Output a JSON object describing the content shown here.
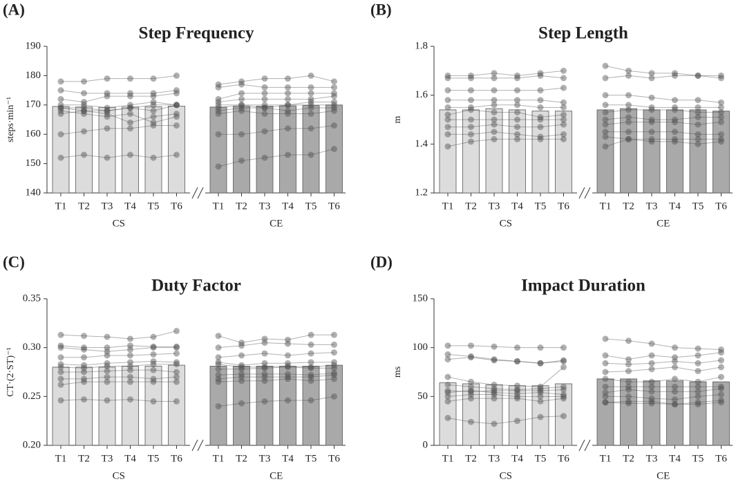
{
  "chart_data": [
    {
      "type": "bar",
      "panel": "(A)",
      "title": "Step Frequency",
      "ylabel": "steps·min⁻¹",
      "categories": [
        "T1",
        "T2",
        "T3",
        "T4",
        "T5",
        "T6"
      ],
      "ylim": [
        140,
        190
      ],
      "yticks": [
        140,
        150,
        160,
        170,
        180,
        190
      ],
      "marker_color": "#505050",
      "series": [
        {
          "name": "CS",
          "color": "#dcdcdc",
          "values": [
            169.5,
            169.3,
            169.2,
            169.3,
            169.4,
            169.6
          ],
          "subjects": [
            [
              178,
              178,
              179,
              179,
              179,
              180
            ],
            [
              175,
              174,
              174,
              174,
              174,
              175
            ],
            [
              172,
              171,
              173,
              173,
              173,
              174
            ],
            [
              170,
              170,
              169,
              170,
              171,
              170
            ],
            [
              169,
              169,
              168,
              169,
              170,
              170
            ],
            [
              169,
              168,
              168,
              169,
              168,
              170
            ],
            [
              167,
              168,
              167,
              164,
              166,
              167
            ],
            [
              168,
              167,
              166,
              167,
              164,
              166
            ],
            [
              160,
              161,
              162,
              162,
              163,
              163
            ],
            [
              152,
              153,
              152,
              153,
              152,
              153
            ]
          ]
        },
        {
          "name": "CE",
          "color": "#a9a9a9",
          "values": [
            169.3,
            169.5,
            169.6,
            169.7,
            169.8,
            170
          ],
          "subjects": [
            [
              177,
              178,
              179,
              179,
              180,
              178
            ],
            [
              176,
              177,
              176,
              176,
              176,
              176
            ],
            [
              172,
              174,
              174,
              174,
              174,
              174
            ],
            [
              171,
              172,
              172,
              172,
              172,
              173
            ],
            [
              170,
              170,
              170,
              170,
              171,
              171
            ],
            [
              169,
              170,
              169,
              170,
              170,
              170
            ],
            [
              168,
              169,
              169,
              168,
              169,
              169
            ],
            [
              167,
              168,
              167,
              167,
              167,
              168
            ],
            [
              160,
              160,
              161,
              162,
              162,
              163
            ],
            [
              149,
              151,
              152,
              153,
              153,
              155
            ]
          ]
        }
      ]
    },
    {
      "type": "bar",
      "panel": "(B)",
      "title": "Step Length",
      "ylabel": "m",
      "categories": [
        "T1",
        "T2",
        "T3",
        "T4",
        "T5",
        "T6"
      ],
      "ylim": [
        1.2,
        1.8
      ],
      "yticks": [
        1.2,
        1.4,
        1.6,
        1.8
      ],
      "marker_color": "#505050",
      "series": [
        {
          "name": "CS",
          "color": "#dcdcdc",
          "values": [
            1.54,
            1.54,
            1.545,
            1.54,
            1.535,
            1.535
          ],
          "subjects": [
            [
              1.68,
              1.68,
              1.69,
              1.68,
              1.69,
              1.7
            ],
            [
              1.67,
              1.67,
              1.67,
              1.67,
              1.68,
              1.67
            ],
            [
              1.62,
              1.62,
              1.62,
              1.62,
              1.62,
              1.63
            ],
            [
              1.58,
              1.58,
              1.58,
              1.58,
              1.58,
              1.57
            ],
            [
              1.55,
              1.55,
              1.56,
              1.56,
              1.55,
              1.55
            ],
            [
              1.52,
              1.54,
              1.53,
              1.53,
              1.51,
              1.52
            ],
            [
              1.5,
              1.5,
              1.5,
              1.5,
              1.5,
              1.5
            ],
            [
              1.47,
              1.47,
              1.48,
              1.47,
              1.47,
              1.48
            ],
            [
              1.44,
              1.44,
              1.45,
              1.44,
              1.43,
              1.44
            ],
            [
              1.39,
              1.41,
              1.42,
              1.42,
              1.42,
              1.42
            ]
          ]
        },
        {
          "name": "CE",
          "color": "#a9a9a9",
          "values": [
            1.54,
            1.545,
            1.54,
            1.54,
            1.54,
            1.535
          ],
          "subjects": [
            [
              1.72,
              1.7,
              1.69,
              1.69,
              1.68,
              1.68
            ],
            [
              1.67,
              1.68,
              1.67,
              1.68,
              1.68,
              1.67
            ],
            [
              1.6,
              1.6,
              1.59,
              1.58,
              1.58,
              1.57
            ],
            [
              1.56,
              1.56,
              1.55,
              1.55,
              1.55,
              1.55
            ],
            [
              1.53,
              1.54,
              1.54,
              1.54,
              1.53,
              1.53
            ],
            [
              1.5,
              1.51,
              1.5,
              1.5,
              1.51,
              1.51
            ],
            [
              1.48,
              1.49,
              1.49,
              1.49,
              1.48,
              1.49
            ],
            [
              1.45,
              1.45,
              1.45,
              1.45,
              1.44,
              1.44
            ],
            [
              1.43,
              1.42,
              1.42,
              1.42,
              1.42,
              1.42
            ],
            [
              1.39,
              1.42,
              1.41,
              1.41,
              1.4,
              1.41
            ]
          ]
        }
      ]
    },
    {
      "type": "bar",
      "panel": "(C)",
      "title": "Duty Factor",
      "ylabel": "CT·(2·ST)⁻¹",
      "categories": [
        "T1",
        "T2",
        "T3",
        "T4",
        "T5",
        "T6"
      ],
      "ylim": [
        0.2,
        0.35
      ],
      "yticks": [
        {
          "value": 0.2,
          "label": "0.20"
        },
        0.25,
        {
          "value": 0.3,
          "label": "0.30"
        },
        0.35
      ],
      "marker_color": "#505050",
      "series": [
        {
          "name": "CS",
          "color": "#dcdcdc",
          "values": [
            0.28,
            0.28,
            0.28,
            0.281,
            0.281,
            0.282
          ],
          "subjects": [
            [
              0.313,
              0.312,
              0.311,
              0.309,
              0.311,
              0.317
            ],
            [
              0.302,
              0.3,
              0.3,
              0.302,
              0.301,
              0.301
            ],
            [
              0.3,
              0.298,
              0.296,
              0.298,
              0.3,
              0.3
            ],
            [
              0.29,
              0.29,
              0.292,
              0.292,
              0.293,
              0.294
            ],
            [
              0.283,
              0.282,
              0.284,
              0.285,
              0.286,
              0.285
            ],
            [
              0.28,
              0.279,
              0.281,
              0.281,
              0.283,
              0.283
            ],
            [
              0.275,
              0.275,
              0.276,
              0.277,
              0.277,
              0.275
            ],
            [
              0.268,
              0.268,
              0.27,
              0.27,
              0.268,
              0.27
            ],
            [
              0.262,
              0.265,
              0.265,
              0.265,
              0.265,
              0.265
            ],
            [
              0.246,
              0.247,
              0.246,
              0.247,
              0.245,
              0.245
            ]
          ]
        },
        {
          "name": "CE",
          "color": "#a9a9a9",
          "values": [
            0.281,
            0.281,
            0.281,
            0.281,
            0.281,
            0.282
          ],
          "subjects": [
            [
              0.312,
              0.305,
              0.309,
              0.308,
              0.313,
              0.313
            ],
            [
              0.3,
              0.302,
              0.305,
              0.304,
              0.303,
              0.303
            ],
            [
              0.29,
              0.292,
              0.294,
              0.292,
              0.294,
              0.295
            ],
            [
              0.285,
              0.282,
              0.284,
              0.284,
              0.285,
              0.285
            ],
            [
              0.283,
              0.28,
              0.28,
              0.281,
              0.28,
              0.282
            ],
            [
              0.278,
              0.278,
              0.279,
              0.28,
              0.279,
              0.279
            ],
            [
              0.272,
              0.273,
              0.273,
              0.273,
              0.272,
              0.274
            ],
            [
              0.268,
              0.27,
              0.27,
              0.27,
              0.27,
              0.272
            ],
            [
              0.265,
              0.266,
              0.266,
              0.268,
              0.266,
              0.268
            ],
            [
              0.24,
              0.243,
              0.245,
              0.246,
              0.246,
              0.25
            ]
          ]
        }
      ]
    },
    {
      "type": "bar",
      "panel": "(D)",
      "title": "Impact Duration",
      "ylabel": "ms",
      "categories": [
        "T1",
        "T2",
        "T3",
        "T4",
        "T5",
        "T6"
      ],
      "ylim": [
        0,
        150
      ],
      "yticks": [
        0,
        50,
        100,
        150
      ],
      "marker_color": "#505050",
      "series": [
        {
          "name": "CS",
          "color": "#dcdcdc",
          "values": [
            64,
            63,
            62,
            61,
            61,
            63
          ],
          "subjects": [
            [
              102,
              102,
              101,
              100,
              100,
              100
            ],
            [
              93,
              91,
              88,
              86,
              84,
              87
            ],
            [
              88,
              90,
              87,
              86,
              84,
              86
            ],
            [
              70,
              65,
              62,
              61,
              60,
              80
            ],
            [
              62,
              60,
              58,
              57,
              58,
              60
            ],
            [
              56,
              55,
              56,
              56,
              56,
              57
            ],
            [
              54,
              56,
              54,
              53,
              54,
              52
            ],
            [
              50,
              52,
              52,
              50,
              50,
              50
            ],
            [
              45,
              48,
              48,
              48,
              45,
              48
            ],
            [
              28,
              24,
              22,
              25,
              29,
              30
            ]
          ]
        },
        {
          "name": "CE",
          "color": "#a9a9a9",
          "values": [
            68,
            68,
            66,
            66,
            65,
            65
          ],
          "subjects": [
            [
              109,
              107,
              104,
              100,
              99,
              98
            ],
            [
              92,
              88,
              92,
              90,
              92,
              95
            ],
            [
              84,
              83,
              84,
              86,
              84,
              87
            ],
            [
              75,
              76,
              78,
              80,
              76,
              80
            ],
            [
              68,
              65,
              65,
              68,
              65,
              70
            ],
            [
              60,
              60,
              60,
              60,
              60,
              60
            ],
            [
              54,
              57,
              55,
              55,
              55,
              58
            ],
            [
              50,
              50,
              48,
              47,
              50,
              52
            ],
            [
              44,
              45,
              45,
              42,
              44,
              46
            ],
            [
              44,
              43,
              43,
              42,
              42,
              44
            ]
          ]
        }
      ]
    }
  ]
}
